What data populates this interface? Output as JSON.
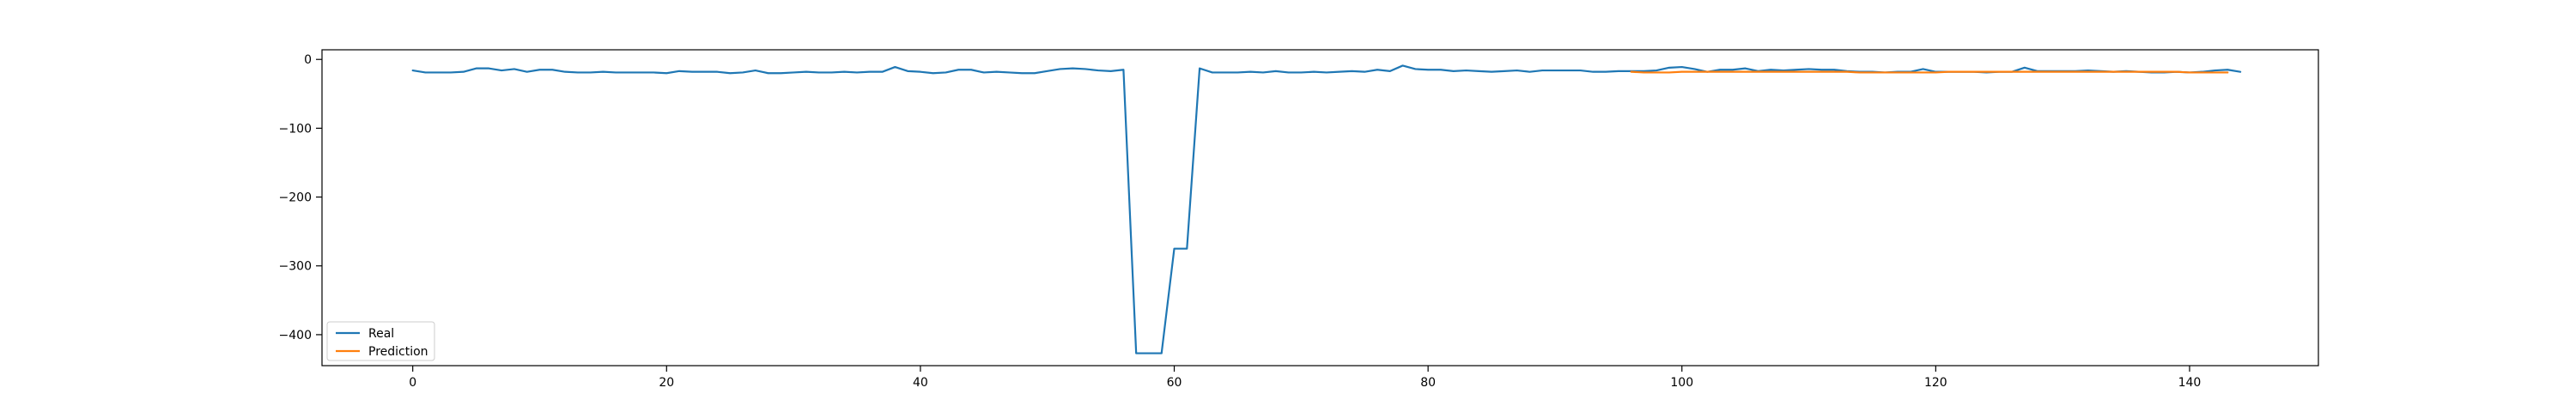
{
  "chart_data": {
    "type": "line",
    "title": "",
    "xlabel": "",
    "ylabel": "",
    "xlim": [
      -7.15,
      150.15
    ],
    "ylim": [
      -445,
      14
    ],
    "xticks": [
      0,
      20,
      40,
      60,
      80,
      100,
      120,
      140
    ],
    "yticks": [
      0,
      -100,
      -200,
      -300,
      -400
    ],
    "grid": false,
    "legend_position": "lower-left",
    "series": [
      {
        "name": "Real",
        "color": "#1f77b4",
        "x_start": 0,
        "values": [
          -16,
          -19,
          -19,
          -19,
          -18,
          -13,
          -13,
          -16,
          -14,
          -18,
          -15,
          -15,
          -18,
          -19,
          -19,
          -18,
          -19,
          -19,
          -19,
          -19,
          -20,
          -17,
          -18,
          -18,
          -18,
          -20,
          -19,
          -16,
          -20,
          -20,
          -19,
          -18,
          -19,
          -19,
          -18,
          -19,
          -18,
          -18,
          -11,
          -17,
          -18,
          -20,
          -19,
          -15,
          -15,
          -19,
          -18,
          -19,
          -20,
          -20,
          -17,
          -14,
          -13,
          -14,
          -16,
          -17,
          -15,
          -427,
          -427,
          -427,
          -275,
          -275,
          -13,
          -19,
          -19,
          -19,
          -18,
          -19,
          -17,
          -19,
          -19,
          -18,
          -19,
          -18,
          -17,
          -18,
          -15,
          -17,
          -9,
          -14,
          -15,
          -15,
          -17,
          -16,
          -17,
          -18,
          -17,
          -16,
          -18,
          -16,
          -16,
          -16,
          -16,
          -18,
          -18,
          -17,
          -17,
          -17,
          -16,
          -12,
          -11,
          -14,
          -18,
          -15,
          -15,
          -13,
          -17,
          -15,
          -16,
          -15,
          -14,
          -15,
          -15,
          -17,
          -18,
          -18,
          -19,
          -18,
          -18,
          -14,
          -18,
          -18,
          -18,
          -18,
          -19,
          -18,
          -18,
          -12,
          -17,
          -17,
          -17,
          -17,
          -16,
          -17,
          -18,
          -17,
          -18,
          -19,
          -19,
          -18,
          -19,
          -18,
          -16,
          -15,
          -18
        ]
      },
      {
        "name": "Prediction",
        "color": "#ff7f0e",
        "x_start": 96,
        "values": [
          -18,
          -19,
          -19,
          -19,
          -18,
          -18,
          -18,
          -18,
          -18,
          -18,
          -18,
          -18,
          -18,
          -18,
          -18,
          -18,
          -18,
          -18,
          -19,
          -19,
          -19,
          -19,
          -19,
          -19,
          -19,
          -18,
          -18,
          -18,
          -18,
          -18,
          -18,
          -18,
          -18,
          -18,
          -18,
          -18,
          -18,
          -18,
          -18,
          -18,
          -18,
          -18,
          -18,
          -18,
          -19,
          -19,
          -19,
          -19
        ]
      }
    ]
  }
}
